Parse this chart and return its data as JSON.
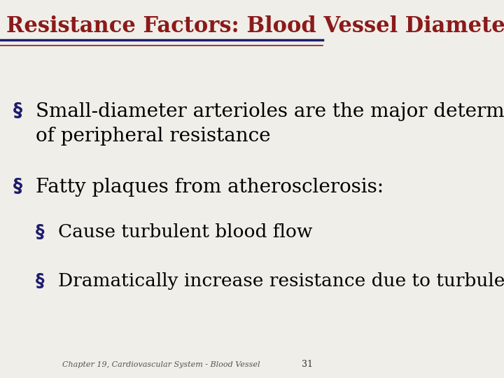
{
  "title": "Resistance Factors: Blood Vessel Diameter",
  "title_color": "#8B1A1A",
  "title_fontsize": 22,
  "background_color": "#F0EEE8",
  "line_color_dark": "#1C1C6E",
  "line_color_red": "#8B1A1A",
  "footer_text": "Chapter 19, Cardiovascular System - Blood Vessel",
  "footer_number": "31",
  "bullet_color": "#1C1C6E",
  "bullet_char": "§",
  "text_color": "#000000",
  "items": [
    {
      "level": 1,
      "text": "Small-diameter arterioles are the major determinants\nof peripheral resistance",
      "fontsize": 20
    },
    {
      "level": 1,
      "text": "Fatty plaques from atherosclerosis:",
      "fontsize": 20
    },
    {
      "level": 2,
      "text": "Cause turbulent blood flow",
      "fontsize": 19
    },
    {
      "level": 2,
      "text": "Dramatically increase resistance due to turbulence",
      "fontsize": 19
    }
  ]
}
